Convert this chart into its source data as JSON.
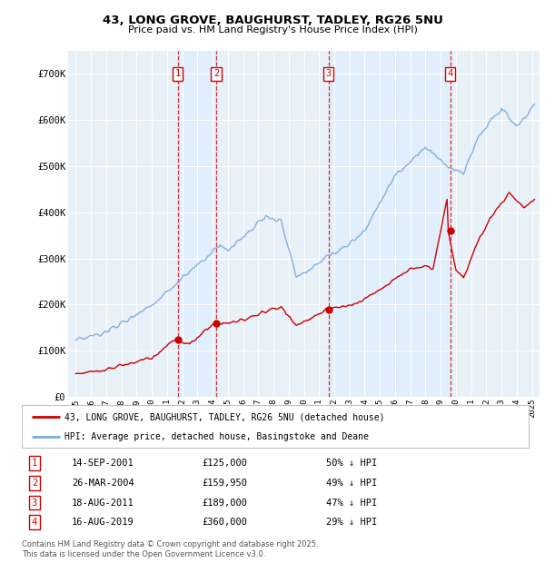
{
  "title1": "43, LONG GROVE, BAUGHURST, TADLEY, RG26 5NU",
  "title2": "Price paid vs. HM Land Registry's House Price Index (HPI)",
  "red_color": "#cc0000",
  "blue_color": "#7aaadd",
  "shade_color": "#ddeeff",
  "transactions": [
    {
      "num": 1,
      "date_str": "14-SEP-2001",
      "date_x": 2001.71,
      "price": 125000,
      "pct": "50% ↓ HPI"
    },
    {
      "num": 2,
      "date_str": "26-MAR-2004",
      "date_x": 2004.23,
      "price": 159950,
      "pct": "49% ↓ HPI"
    },
    {
      "num": 3,
      "date_str": "18-AUG-2011",
      "date_x": 2011.62,
      "price": 189000,
      "pct": "47% ↓ HPI"
    },
    {
      "num": 4,
      "date_str": "16-AUG-2019",
      "date_x": 2019.62,
      "price": 360000,
      "pct": "29% ↓ HPI"
    }
  ],
  "xlim": [
    1994.5,
    2025.5
  ],
  "ylim": [
    0,
    750000
  ],
  "yticks": [
    0,
    100000,
    200000,
    300000,
    400000,
    500000,
    600000,
    700000
  ],
  "ytick_labels": [
    "£0",
    "£100K",
    "£200K",
    "£300K",
    "£400K",
    "£500K",
    "£600K",
    "£700K"
  ],
  "xticks": [
    1995,
    1996,
    1997,
    1998,
    1999,
    2000,
    2001,
    2002,
    2003,
    2004,
    2005,
    2006,
    2007,
    2008,
    2009,
    2010,
    2011,
    2012,
    2013,
    2014,
    2015,
    2016,
    2017,
    2018,
    2019,
    2020,
    2021,
    2022,
    2023,
    2024,
    2025
  ],
  "legend_line1": "43, LONG GROVE, BAUGHURST, TADLEY, RG26 5NU (detached house)",
  "legend_line2": "HPI: Average price, detached house, Basingstoke and Deane",
  "footer1": "Contains HM Land Registry data © Crown copyright and database right 2025.",
  "footer2": "This data is licensed under the Open Government Licence v3.0."
}
